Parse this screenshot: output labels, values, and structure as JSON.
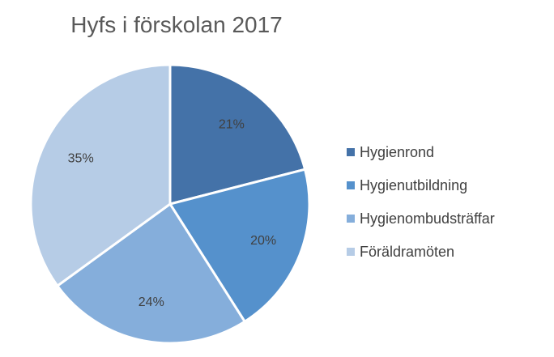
{
  "chart_data": {
    "type": "pie",
    "title": "Hyfs i förskolan 2017",
    "categories": [
      "Hygienrond",
      "Hygienutbildning",
      "Hygienombudsträffar",
      "Föräldramöten"
    ],
    "values": [
      21,
      20,
      24,
      35
    ],
    "labels": [
      "21%",
      "20%",
      "24%",
      "35%"
    ],
    "colors": [
      "#4472a8",
      "#5591cc",
      "#85aedb",
      "#b6cce6"
    ],
    "legend": "right",
    "start_angle_deg": 0,
    "direction": "clockwise"
  }
}
